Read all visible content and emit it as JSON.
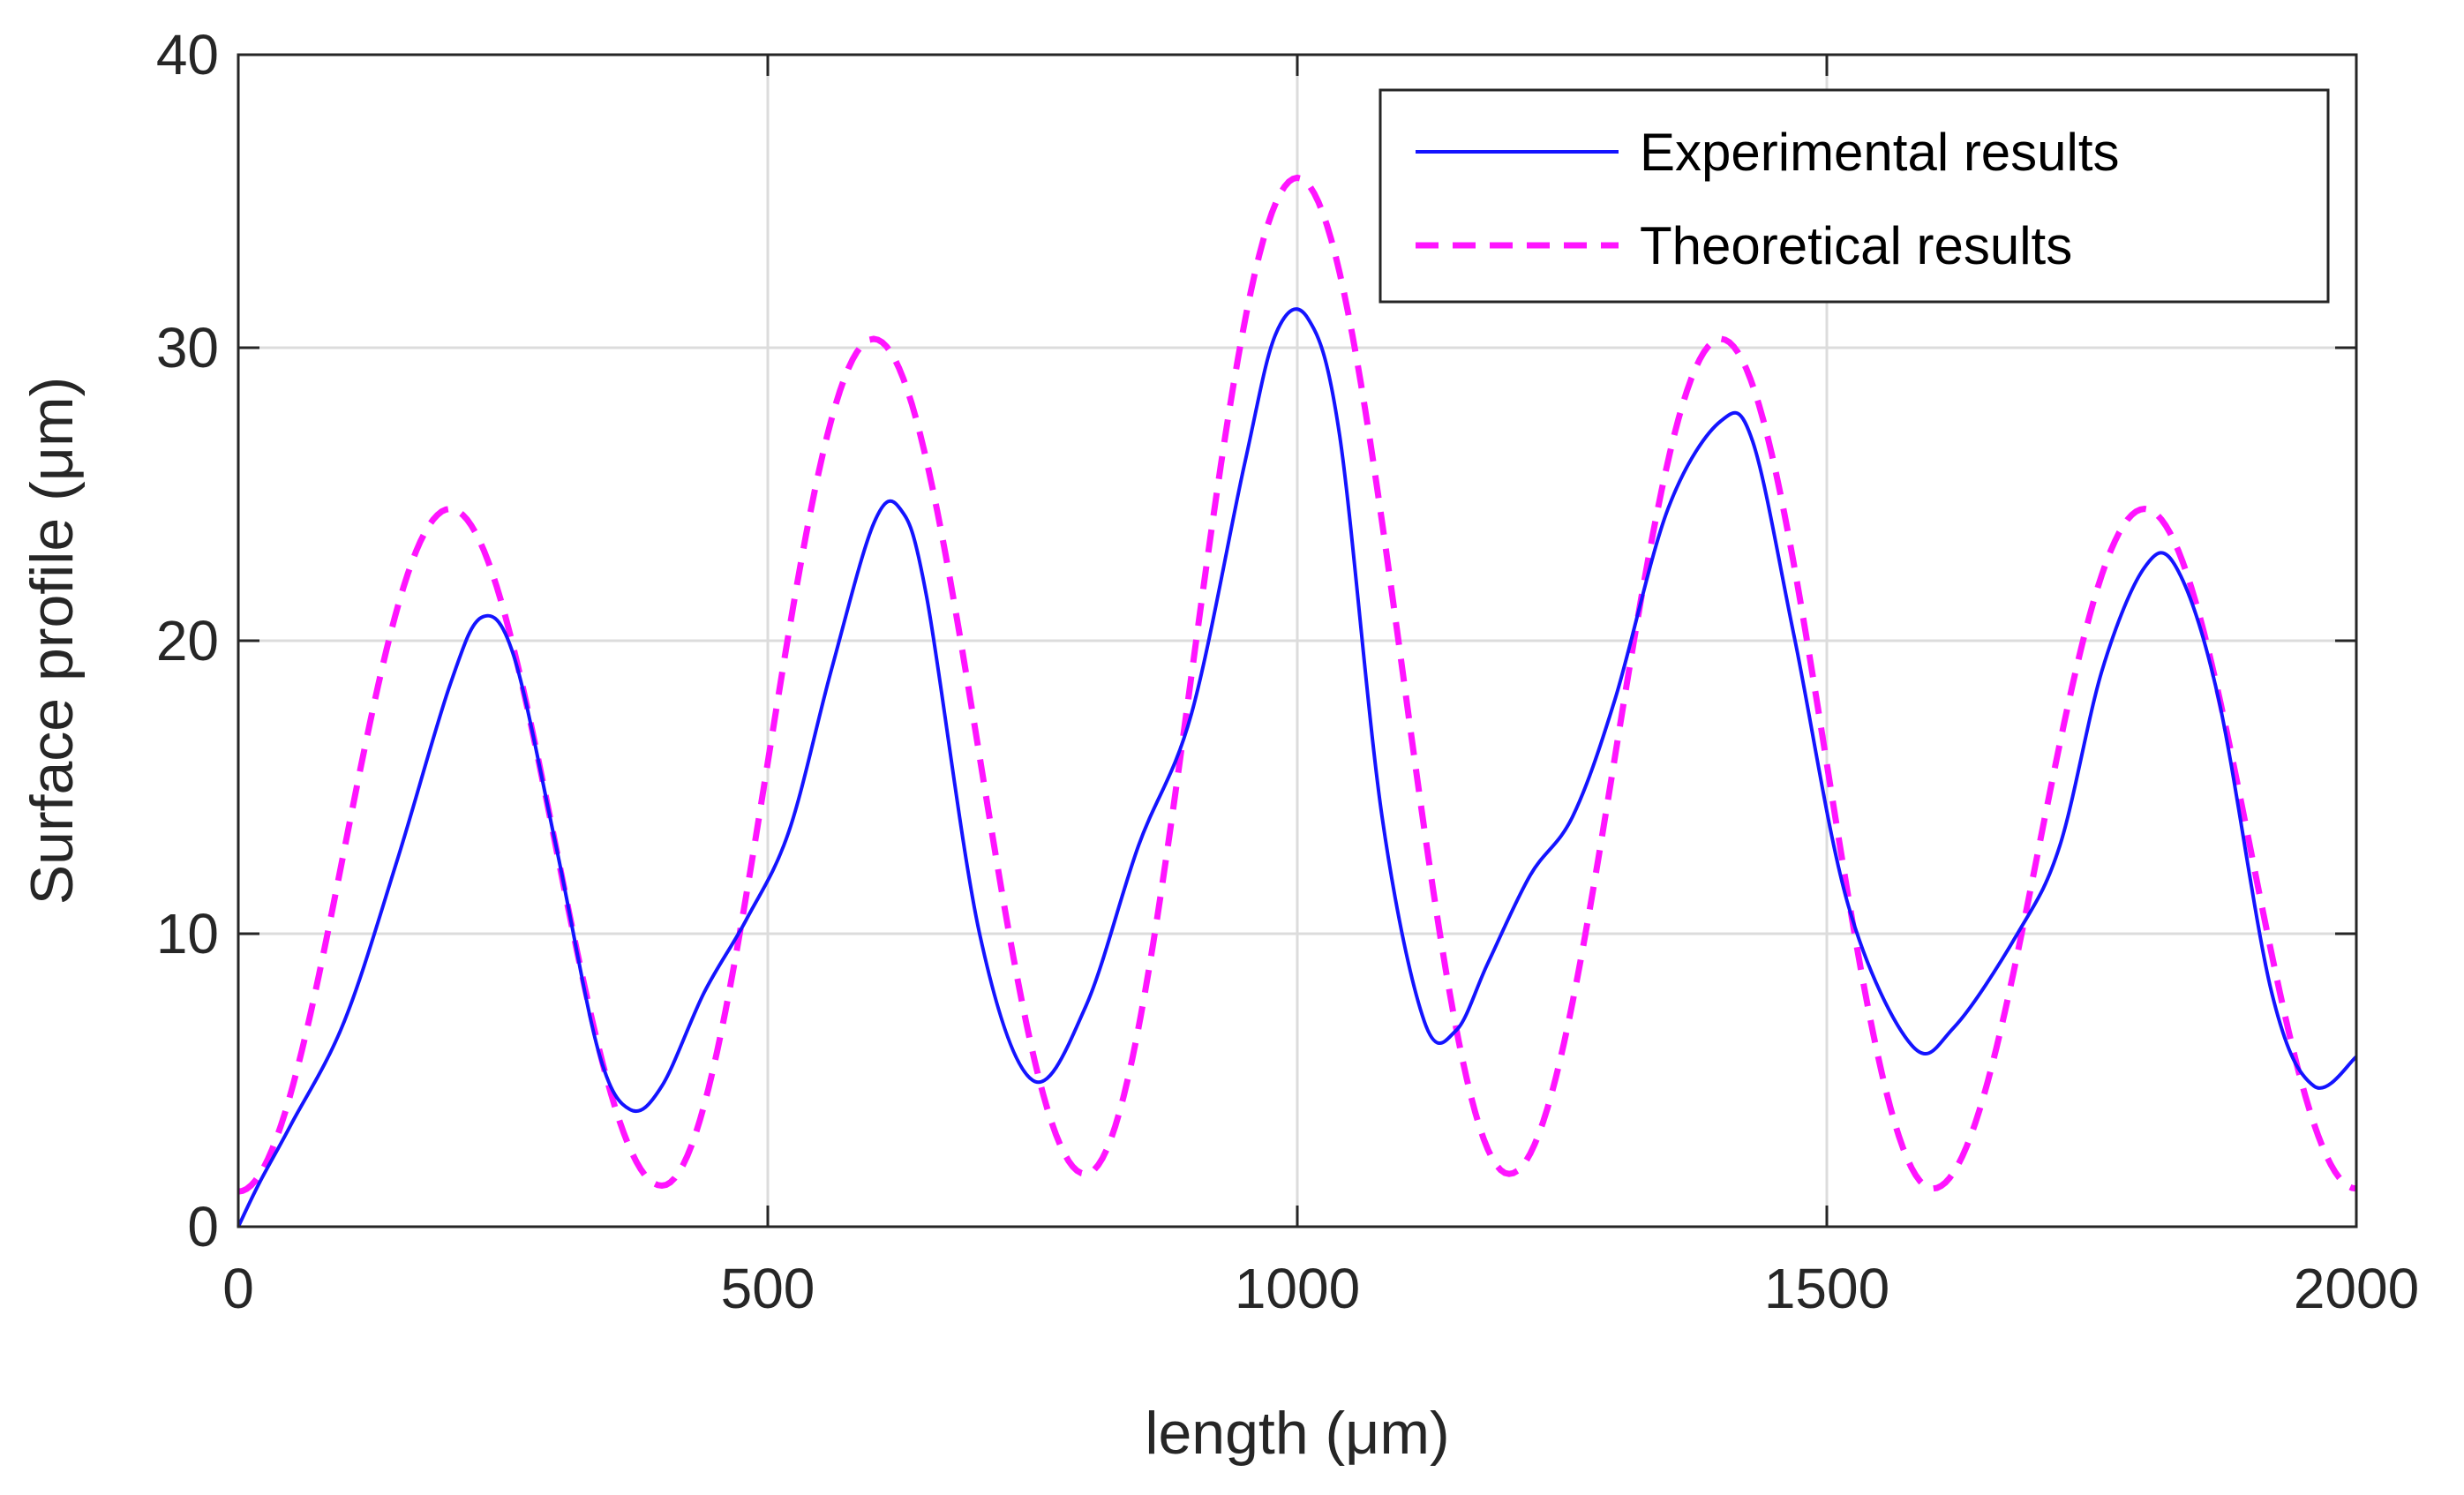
{
  "chart_data": {
    "type": "line",
    "title": "",
    "xlabel": "length (μm)",
    "ylabel": "Surface profile (μm)",
    "xlim": [
      0,
      2000
    ],
    "ylim": [
      0,
      40
    ],
    "xticks": [
      0,
      500,
      1000,
      1500,
      2000
    ],
    "yticks": [
      0,
      10,
      20,
      30,
      40
    ],
    "xtick_labels": [
      "0",
      "500",
      "1000",
      "1500",
      "2000"
    ],
    "ytick_labels": [
      "0",
      "10",
      "20",
      "30",
      "40"
    ],
    "grid": true,
    "legend_position": "top-right",
    "series": [
      {
        "name": "Experimental results",
        "color": "#1414ff",
        "style": "solid",
        "x": [
          0,
          20,
          50,
          100,
          150,
          200,
          230,
          260,
          300,
          340,
          370,
          400,
          440,
          480,
          520,
          560,
          600,
          625,
          650,
          700,
          750,
          800,
          850,
          900,
          950,
          980,
          1010,
          1040,
          1080,
          1120,
          1150,
          1180,
          1220,
          1260,
          1300,
          1350,
          1400,
          1430,
          1470,
          1520,
          1580,
          1620,
          1680,
          1720,
          1760,
          1800,
          1830,
          1870,
          1920,
          1960,
          2000
        ],
        "y": [
          0,
          1.5,
          3.5,
          7.0,
          12.5,
          18.5,
          20.8,
          19.5,
          13.0,
          6.0,
          4.0,
          4.8,
          8.0,
          10.5,
          13.5,
          19.0,
          24.0,
          24.5,
          21.5,
          10.0,
          5.0,
          7.5,
          13.0,
          17.5,
          26.0,
          30.5,
          31.0,
          27.0,
          14.0,
          7.0,
          6.7,
          9.0,
          12.0,
          14.0,
          18.0,
          24.5,
          27.5,
          26.8,
          20.0,
          11.0,
          6.2,
          6.8,
          10.0,
          13.0,
          19.0,
          22.5,
          22.5,
          18.0,
          8.0,
          4.8,
          5.8
        ]
      },
      {
        "name": "Theoretical results",
        "color": "#ff14ff",
        "style": "dashed",
        "x_start": 0,
        "x_end": 2000,
        "periods": [
          {
            "x_min": 0,
            "x_max": 400,
            "trough_start": 1.2,
            "peak": 24.5,
            "trough_end": 1.4
          },
          {
            "x_min": 400,
            "x_max": 800,
            "trough_start": 1.4,
            "peak": 30.3,
            "trough_end": 1.8
          },
          {
            "x_min": 800,
            "x_max": 1200,
            "trough_start": 1.8,
            "peak": 35.8,
            "trough_end": 1.8
          },
          {
            "x_min": 1200,
            "x_max": 1600,
            "trough_start": 1.8,
            "peak": 30.3,
            "trough_end": 1.3
          },
          {
            "x_min": 1600,
            "x_max": 2000,
            "trough_start": 1.3,
            "peak": 24.5,
            "trough_end": 1.3
          }
        ]
      }
    ]
  }
}
